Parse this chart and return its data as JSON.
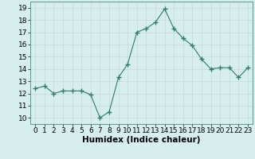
{
  "x": [
    0,
    1,
    2,
    3,
    4,
    5,
    6,
    7,
    8,
    9,
    10,
    11,
    12,
    13,
    14,
    15,
    16,
    17,
    18,
    19,
    20,
    21,
    22,
    23
  ],
  "y": [
    12.4,
    12.6,
    12.0,
    12.2,
    12.2,
    12.2,
    11.9,
    10.0,
    10.5,
    13.3,
    14.4,
    17.0,
    17.3,
    17.8,
    18.9,
    17.3,
    16.5,
    15.9,
    14.8,
    14.0,
    14.1,
    14.1,
    13.3,
    14.1
  ],
  "line_color": "#2e7d6e",
  "marker": "+",
  "marker_size": 4,
  "marker_lw": 1.0,
  "bg_color": "#d6eeee",
  "grid_color": "#c8d8d8",
  "xlabel": "Humidex (Indice chaleur)",
  "ylabel_ticks": [
    10,
    11,
    12,
    13,
    14,
    15,
    16,
    17,
    18,
    19
  ],
  "xlabel_ticks": [
    0,
    1,
    2,
    3,
    4,
    5,
    6,
    7,
    8,
    9,
    10,
    11,
    12,
    13,
    14,
    15,
    16,
    17,
    18,
    19,
    20,
    21,
    22,
    23
  ],
  "xlim": [
    -0.5,
    23.5
  ],
  "ylim": [
    9.5,
    19.5
  ],
  "xlabel_fontsize": 7.5,
  "tick_fontsize": 6.5
}
